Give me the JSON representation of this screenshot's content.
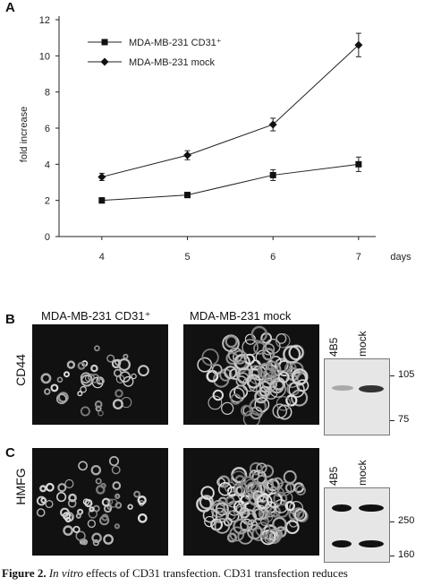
{
  "panel_a": {
    "letter": "A",
    "chart_data": {
      "type": "line",
      "ylabel": "fold increase",
      "xlabel": "days",
      "x": [
        4,
        5,
        6,
        7
      ],
      "xticks": [
        "4",
        "5",
        "6",
        "7"
      ],
      "yticks": [
        "0",
        "2",
        "4",
        "6",
        "8",
        "10",
        "12"
      ],
      "ylim": [
        0,
        12
      ],
      "legend_position": "top-left",
      "series": [
        {
          "name": "MDA-MB-231 CD31⁺",
          "marker": "square",
          "values": [
            2.0,
            2.3,
            3.4,
            4.0
          ],
          "errors": [
            0.15,
            0.15,
            0.3,
            0.4
          ]
        },
        {
          "name": "MDA-MB-231 mock",
          "marker": "diamond",
          "values": [
            3.3,
            4.5,
            6.2,
            10.6
          ],
          "errors": [
            0.2,
            0.25,
            0.35,
            0.65
          ]
        }
      ]
    }
  },
  "panel_b": {
    "letter": "B",
    "col_title_1": "MDA-MB-231 CD31⁺",
    "col_title_2": "MDA-MB-231 mock",
    "row_label": "CD44",
    "lane_1": "4B5",
    "lane_2": "mock",
    "mw_top": "105",
    "mw_bottom": "75"
  },
  "panel_c": {
    "letter": "C",
    "row_label": "HMFG",
    "lane_1": "4B5",
    "lane_2": "mock",
    "mw_top": "250",
    "mw_bottom": "160"
  },
  "caption": {
    "label": "Figure 2.",
    "italic": "In vitro",
    "text": "effects of CD31 transfection. CD31 transfection reduces"
  }
}
